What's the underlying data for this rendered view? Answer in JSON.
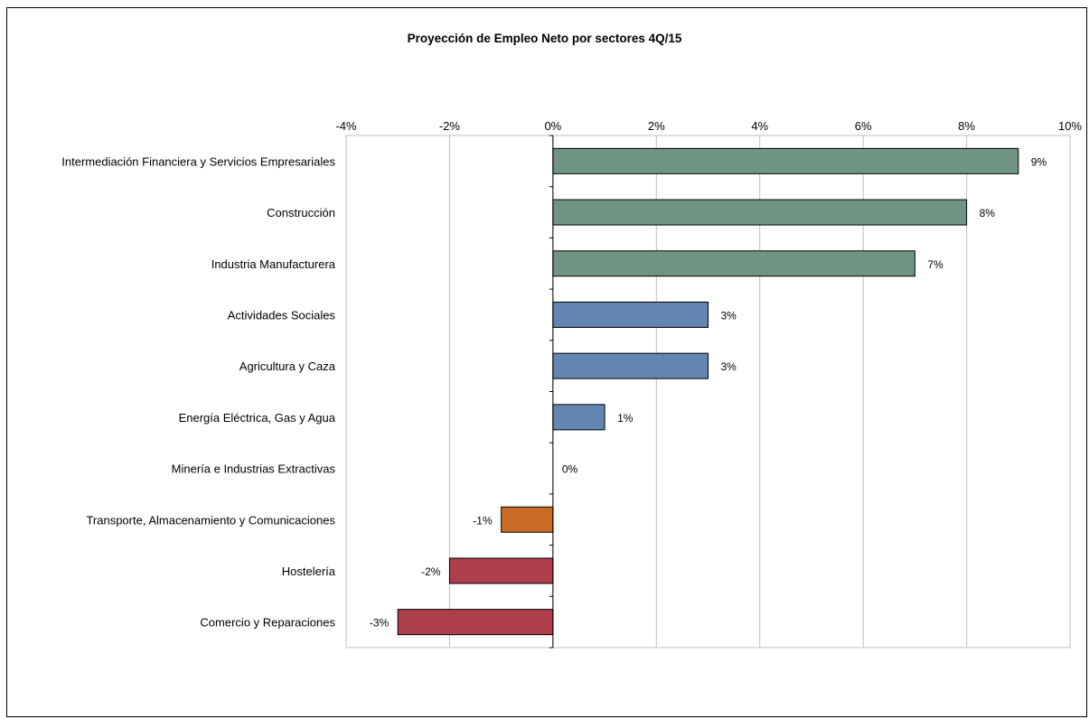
{
  "chart_data": {
    "type": "bar",
    "orientation": "horizontal",
    "title": "Proyección de Empleo Neto por sectores  4Q/15",
    "xlabel": "",
    "ylabel": "",
    "xlim": [
      -4,
      10
    ],
    "x_ticks": [
      "-4%",
      "-2%",
      "0%",
      "2%",
      "4%",
      "6%",
      "8%",
      "10%"
    ],
    "grid": true,
    "legend": "none",
    "categories": [
      "Intermediación Financiera y Servicios Empresariales",
      "Construcción",
      "Industria Manufacturera",
      "Actividades Sociales",
      "Agricultura y Caza",
      "Energía Eléctrica, Gas y Agua",
      "Minería e Industrias Extractivas",
      "Transporte, Almacenamiento y Comunicaciones",
      "Hostelería",
      "Comercio y Reparaciones"
    ],
    "values": [
      9,
      8,
      7,
      3,
      3,
      1,
      0,
      -1,
      -2,
      -3
    ],
    "data_labels": [
      "9%",
      "8%",
      "7%",
      "3%",
      "3%",
      "1%",
      "0%",
      "-1%",
      "-2%",
      "-3%"
    ],
    "colors": [
      "#6f9482",
      "#6f9482",
      "#6f9482",
      "#6385b1",
      "#6385b1",
      "#6385b1",
      "#6385b1",
      "#c86b27",
      "#ad3e4c",
      "#ad3e4c"
    ]
  }
}
